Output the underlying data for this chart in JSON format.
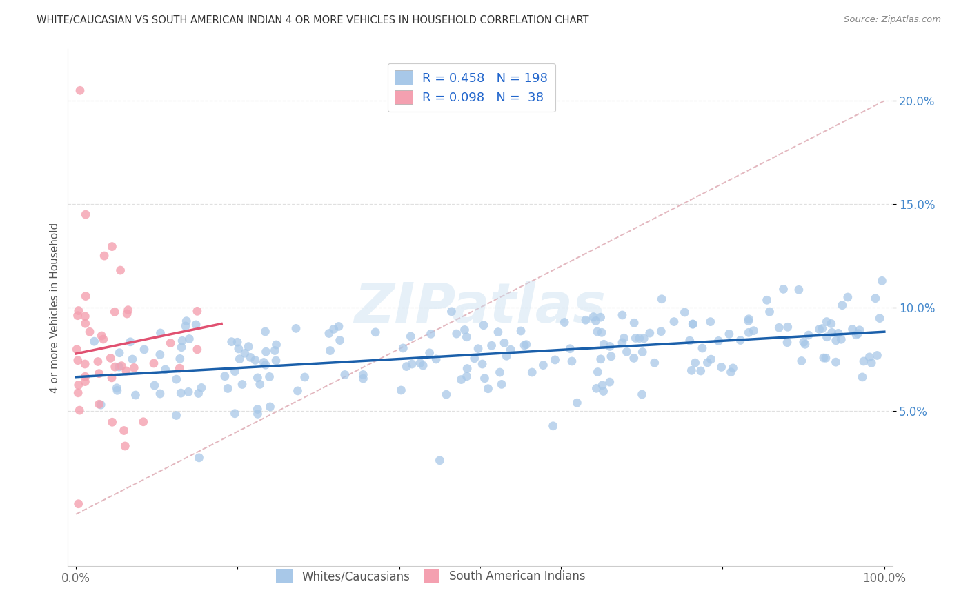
{
  "title": "WHITE/CAUCASIAN VS SOUTH AMERICAN INDIAN 4 OR MORE VEHICLES IN HOUSEHOLD CORRELATION CHART",
  "source": "Source: ZipAtlas.com",
  "ylabel": "4 or more Vehicles in Household",
  "watermark": "ZIPatlas",
  "blue_R": 0.458,
  "blue_N": 198,
  "pink_R": 0.098,
  "pink_N": 38,
  "xlim": [
    -0.01,
    1.01
  ],
  "ylim": [
    -0.025,
    0.225
  ],
  "x_ticks": [
    0.0,
    0.2,
    0.4,
    0.6,
    0.8,
    1.0
  ],
  "x_tick_labels": [
    "0.0%",
    "",
    "",
    "",
    "",
    "100.0%"
  ],
  "y_ticks": [
    0.05,
    0.1,
    0.15,
    0.2
  ],
  "y_tick_labels": [
    "5.0%",
    "10.0%",
    "15.0%",
    "20.0%"
  ],
  "blue_color": "#a8c8e8",
  "pink_color": "#f4a0b0",
  "blue_line_color": "#1a5faa",
  "pink_line_color": "#e05070",
  "dashed_line_color": "#e0b0b8",
  "legend_text_color": "#2266cc",
  "background_color": "#ffffff",
  "grid_color": "#e0e0e0",
  "title_color": "#333333",
  "source_color": "#888888",
  "tick_color": "#4488cc",
  "seed": 12
}
